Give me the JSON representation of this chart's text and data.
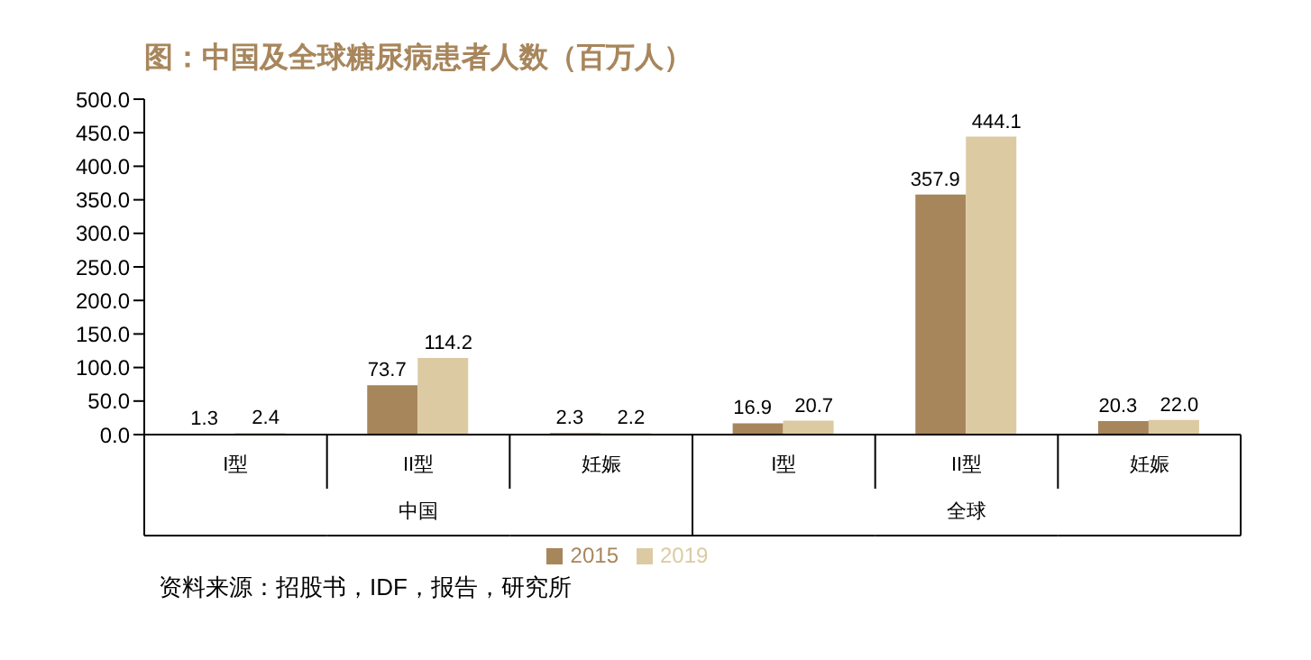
{
  "chart_data": {
    "type": "bar",
    "title": "图：中国及全球糖尿病患者人数（百万人）",
    "categories": [
      "I型",
      "II型",
      "妊娠",
      "I型",
      "II型",
      "妊娠"
    ],
    "series": [
      {
        "name": "2015",
        "color": "#a8865c",
        "values": [
          1.3,
          73.7,
          2.3,
          16.9,
          357.9,
          20.3
        ],
        "value_labels": [
          "1.3",
          "73.7",
          "2.3",
          "16.9",
          "357.9",
          "20.3"
        ]
      },
      {
        "name": "2019",
        "color": "#dccaa2",
        "values": [
          2.4,
          114.2,
          2.2,
          20.7,
          444.1,
          22.0
        ],
        "value_labels": [
          "2.4",
          "114.2",
          "2.2",
          "20.7",
          "444.1",
          "22.0"
        ]
      }
    ],
    "ylim": [
      0,
      500
    ],
    "yticks": [
      {
        "value": 0,
        "label": "0.0"
      },
      {
        "value": 50,
        "label": "50.0"
      },
      {
        "value": 100,
        "label": "100.0"
      },
      {
        "value": 150,
        "label": "150.0"
      },
      {
        "value": 200,
        "label": "200.0"
      },
      {
        "value": 250,
        "label": "250.0"
      },
      {
        "value": 300,
        "label": "300.0"
      },
      {
        "value": 350,
        "label": "350.0"
      },
      {
        "value": 400,
        "label": "400.0"
      },
      {
        "value": 450,
        "label": "450.0"
      },
      {
        "value": 500,
        "label": "500.0"
      }
    ],
    "grid": false,
    "legend": "bottom",
    "annotations": [
      "中国",
      "全球",
      "资料来源：招股书，IDF，报告，研究所"
    ]
  }
}
